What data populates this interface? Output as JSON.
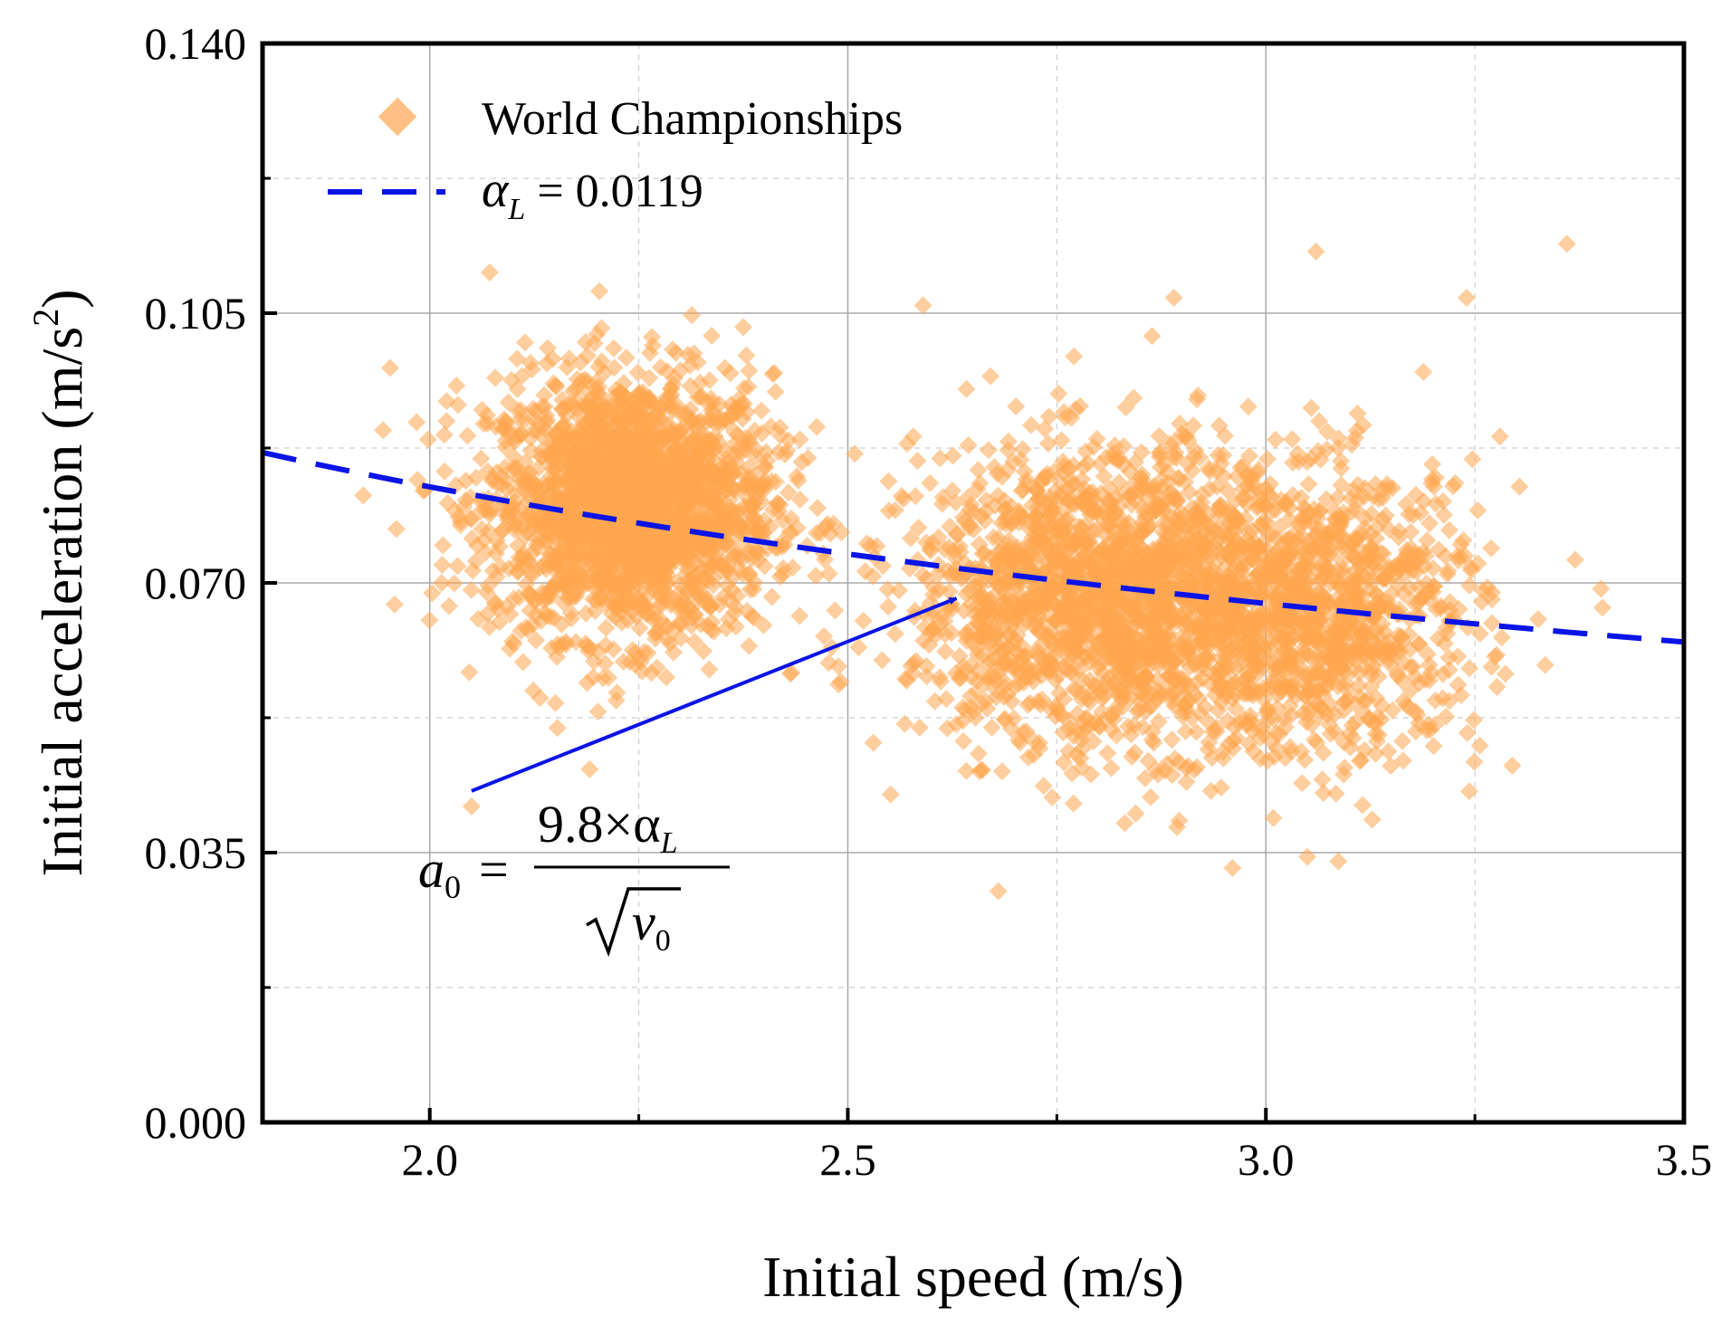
{
  "chart_data": {
    "type": "scatter",
    "xlabel": "Initial speed (m/s)",
    "ylabel_main": "Initial acceleration (m/s",
    "ylabel_sup": "2",
    "ylabel_tail": ")",
    "xlim": [
      1.8,
      3.5
    ],
    "ylim": [
      0.0,
      0.14
    ],
    "x_ticks": [
      2.0,
      2.5,
      3.0,
      3.5
    ],
    "x_tick_labels": [
      "2.0",
      "2.5",
      "3.0",
      "3.5"
    ],
    "x_minor_ticks": [
      2.25,
      2.75,
      3.25
    ],
    "y_ticks": [
      0.0,
      0.035,
      0.07,
      0.105,
      0.14
    ],
    "y_tick_labels": [
      "0.000",
      "0.035",
      "0.070",
      "0.105",
      "0.140"
    ],
    "y_minor_ticks": [
      0.0175,
      0.0525,
      0.0875,
      0.1225
    ],
    "grid": true,
    "legend_position": "top-left",
    "series": [
      {
        "name": "World Championships",
        "kind": "scatter",
        "marker": "diamond",
        "color": "#ffa54f",
        "clusters": [
          {
            "cx": 2.24,
            "cy": 0.08,
            "sx": 0.085,
            "sy": 0.0085,
            "n": 2200
          },
          {
            "cx": 2.82,
            "cy": 0.068,
            "sx": 0.12,
            "sy": 0.0095,
            "n": 2000
          },
          {
            "cx": 3.08,
            "cy": 0.066,
            "sx": 0.09,
            "sy": 0.0095,
            "n": 900
          }
        ],
        "sample_points": [
          [
            2.05,
            0.041
          ],
          [
            2.68,
            0.03
          ],
          [
            2.96,
            0.033
          ],
          [
            3.06,
            0.113
          ],
          [
            3.36,
            0.114
          ],
          [
            3.24,
            0.107
          ],
          [
            2.89,
            0.107
          ],
          [
            2.59,
            0.106
          ],
          [
            2.02,
            0.091
          ],
          [
            1.96,
            0.077
          ],
          [
            3.37,
            0.073
          ],
          [
            3.28,
            0.089
          ]
        ]
      },
      {
        "name": "α_L = 0.0119",
        "name_symbol": "α",
        "name_sub": "L",
        "name_value": " = 0.0119",
        "kind": "line",
        "style": "dashed",
        "color": "#0a14e6",
        "alpha_L": 0.0119,
        "formula": "a0 = 9.8 * alpha_L / sqrt(v0)",
        "x_range": [
          1.8,
          3.5
        ]
      }
    ],
    "annotation": {
      "lhs": "a",
      "lhs_sub": "0",
      "equals": "=",
      "numerator": "9.8×α",
      "numerator_sub": "L",
      "denominator": "v",
      "denominator_sub": "0",
      "arrow_from": [
        2.05,
        0.043
      ],
      "arrow_to": [
        2.63,
        0.068
      ],
      "arrow_color": "#0a14e6"
    }
  }
}
